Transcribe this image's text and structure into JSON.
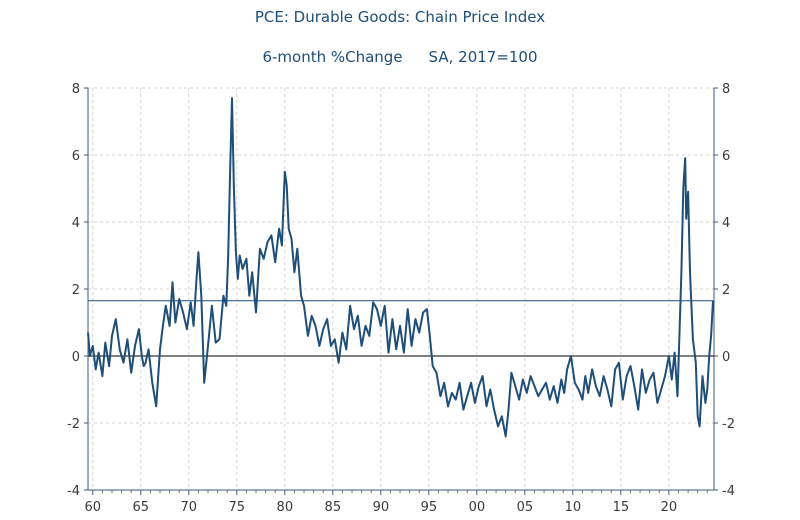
{
  "chart_data": {
    "type": "line",
    "title": "PCE: Durable Goods: Chain Price Index",
    "subtitle_left": "6-month %Change",
    "subtitle_right": "SA, 2017=100",
    "xlabel": "",
    "ylabel": "",
    "xlim": [
      1959.5,
      2024.7
    ],
    "ylim": [
      -4,
      8
    ],
    "x_tick_values": [
      1960,
      1965,
      1970,
      1975,
      1980,
      1985,
      1990,
      1995,
      2000,
      2005,
      2010,
      2015,
      2020
    ],
    "x_tick_labels": [
      "60",
      "65",
      "70",
      "75",
      "80",
      "85",
      "90",
      "95",
      "00",
      "05",
      "10",
      "15",
      "20"
    ],
    "y_tick_values": [
      -4,
      -2,
      0,
      2,
      4,
      6,
      8
    ],
    "y_tick_labels": [
      "-4",
      "-2",
      "0",
      "2",
      "4",
      "6",
      "8"
    ],
    "grid": true,
    "reference_lines": {
      "zero": 0,
      "last_value": 1.65
    },
    "series": [
      {
        "name": "6-month %Change",
        "color": "#1f4e79",
        "x": [
          1959.5,
          1959.7,
          1960.0,
          1960.3,
          1960.6,
          1961.0,
          1961.3,
          1961.7,
          1962.0,
          1962.4,
          1962.8,
          1963.2,
          1963.6,
          1964.0,
          1964.4,
          1964.8,
          1965.1,
          1965.3,
          1965.5,
          1965.8,
          1966.2,
          1966.6,
          1967.0,
          1967.3,
          1967.6,
          1968.0,
          1968.3,
          1968.6,
          1969.0,
          1969.4,
          1969.8,
          1970.2,
          1970.5,
          1970.8,
          1971.0,
          1971.3,
          1971.6,
          1972.0,
          1972.4,
          1972.8,
          1973.2,
          1973.6,
          1973.9,
          1974.1,
          1974.3,
          1974.5,
          1974.7,
          1974.9,
          1975.1,
          1975.3,
          1975.6,
          1976.0,
          1976.3,
          1976.6,
          1977.0,
          1977.4,
          1977.8,
          1978.2,
          1978.6,
          1979.0,
          1979.4,
          1979.7,
          1980.0,
          1980.2,
          1980.4,
          1980.7,
          1981.0,
          1981.3,
          1981.7,
          1982.0,
          1982.4,
          1982.8,
          1983.2,
          1983.6,
          1984.0,
          1984.4,
          1984.8,
          1985.2,
          1985.6,
          1986.0,
          1986.4,
          1986.8,
          1987.2,
          1987.6,
          1988.0,
          1988.4,
          1988.8,
          1989.2,
          1989.6,
          1990.0,
          1990.4,
          1990.8,
          1991.2,
          1991.6,
          1992.0,
          1992.4,
          1992.8,
          1993.2,
          1993.6,
          1994.0,
          1994.4,
          1994.8,
          1995.1,
          1995.4,
          1995.8,
          1996.2,
          1996.6,
          1997.0,
          1997.4,
          1997.8,
          1998.2,
          1998.6,
          1999.0,
          1999.4,
          1999.8,
          2000.2,
          2000.6,
          2001.0,
          2001.4,
          2001.8,
          2002.2,
          2002.6,
          2003.0,
          2003.3,
          2003.6,
          2004.0,
          2004.4,
          2004.8,
          2005.2,
          2005.6,
          2006.0,
          2006.4,
          2006.8,
          2007.2,
          2007.6,
          2008.0,
          2008.4,
          2008.8,
          2009.1,
          2009.4,
          2009.8,
          2010.2,
          2010.6,
          2011.0,
          2011.3,
          2011.6,
          2012.0,
          2012.4,
          2012.8,
          2013.2,
          2013.6,
          2014.0,
          2014.4,
          2014.8,
          2015.2,
          2015.6,
          2016.0,
          2016.4,
          2016.8,
          2017.2,
          2017.6,
          2018.0,
          2018.4,
          2018.8,
          2019.2,
          2019.6,
          2020.0,
          2020.3,
          2020.6,
          2020.9,
          2021.1,
          2021.3,
          2021.5,
          2021.7,
          2021.8,
          2022.0,
          2022.2,
          2022.5,
          2022.8,
          2023.0,
          2023.2,
          2023.5,
          2023.8,
          2024.0,
          2024.2,
          2024.4,
          2024.6
        ],
        "values": [
          0.7,
          0.0,
          0.3,
          -0.4,
          0.1,
          -0.6,
          0.4,
          -0.3,
          0.6,
          1.1,
          0.2,
          -0.2,
          0.5,
          -0.5,
          0.3,
          0.8,
          0.0,
          -0.3,
          -0.2,
          0.2,
          -0.8,
          -1.5,
          0.2,
          0.9,
          1.5,
          0.9,
          2.2,
          1.0,
          1.7,
          1.3,
          0.8,
          1.6,
          0.9,
          2.3,
          3.1,
          1.8,
          -0.8,
          0.3,
          1.5,
          0.4,
          0.5,
          1.8,
          1.5,
          3.0,
          5.5,
          7.7,
          5.0,
          3.1,
          2.3,
          3.0,
          2.6,
          2.9,
          1.8,
          2.5,
          1.3,
          3.2,
          2.9,
          3.4,
          3.6,
          2.8,
          3.8,
          3.3,
          5.5,
          5.1,
          3.8,
          3.5,
          2.5,
          3.2,
          1.8,
          1.5,
          0.6,
          1.2,
          0.9,
          0.3,
          0.8,
          1.1,
          0.3,
          0.5,
          -0.2,
          0.7,
          0.2,
          1.5,
          0.8,
          1.2,
          0.3,
          0.9,
          0.6,
          1.6,
          1.4,
          0.9,
          1.5,
          0.1,
          1.1,
          0.2,
          0.9,
          0.1,
          1.4,
          0.3,
          1.1,
          0.7,
          1.3,
          1.4,
          0.6,
          -0.3,
          -0.5,
          -1.2,
          -0.8,
          -1.5,
          -1.1,
          -1.3,
          -0.8,
          -1.6,
          -1.2,
          -0.8,
          -1.4,
          -0.9,
          -0.6,
          -1.5,
          -1.0,
          -1.6,
          -2.1,
          -1.8,
          -2.4,
          -1.6,
          -0.5,
          -0.9,
          -1.3,
          -0.7,
          -1.1,
          -0.6,
          -0.9,
          -1.2,
          -1.0,
          -0.8,
          -1.3,
          -0.9,
          -1.4,
          -0.7,
          -1.1,
          -0.4,
          0.0,
          -0.8,
          -1.0,
          -1.3,
          -0.6,
          -1.1,
          -0.4,
          -0.9,
          -1.2,
          -0.6,
          -1.0,
          -1.5,
          -0.4,
          -0.2,
          -1.3,
          -0.6,
          -0.3,
          -0.9,
          -1.6,
          -0.4,
          -1.1,
          -0.7,
          -0.5,
          -1.4,
          -1.0,
          -0.6,
          0.0,
          -0.7,
          0.1,
          -1.2,
          0.6,
          2.5,
          5.0,
          5.9,
          4.1,
          4.9,
          2.5,
          0.5,
          -0.2,
          -1.8,
          -2.1,
          -0.6,
          -1.4,
          -1.0,
          0.0,
          0.6,
          1.65
        ]
      }
    ]
  }
}
